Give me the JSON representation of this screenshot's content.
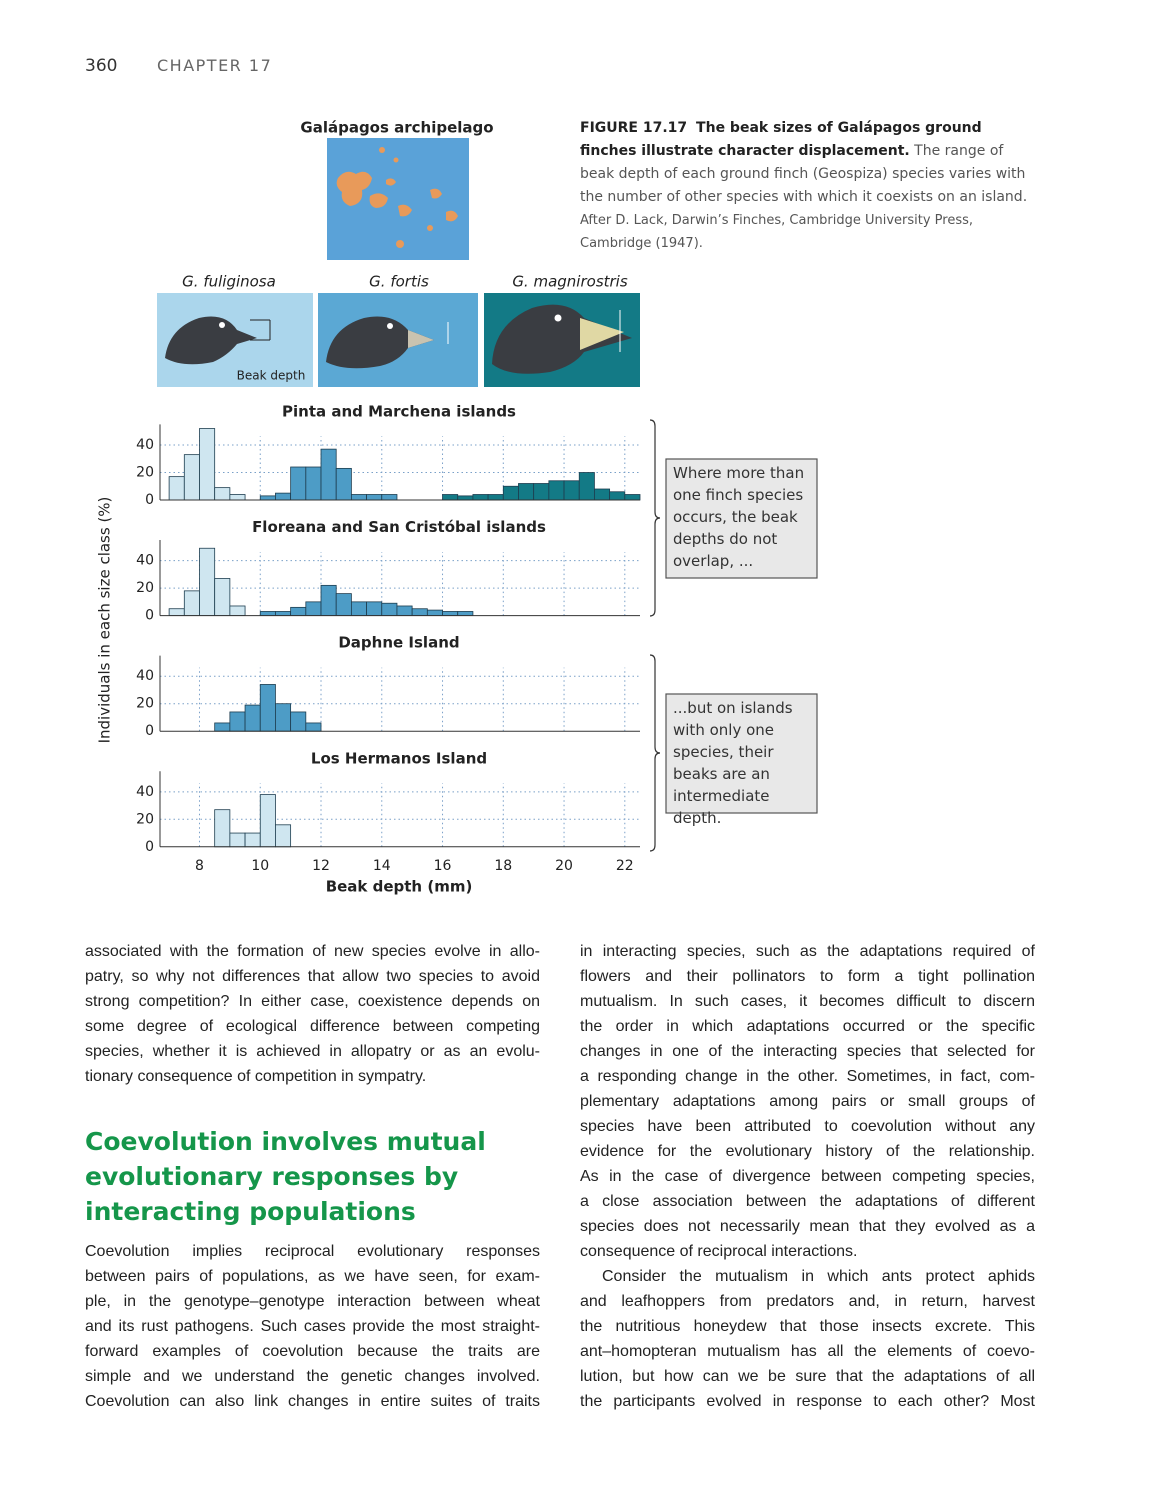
{
  "header": {
    "page_number": "360",
    "chapter": "CHAPTER 17"
  },
  "figure": {
    "caption_label": "FIGURE 17.17",
    "caption_title": "The beak sizes of Galápagos ground finches illustrate character displacement.",
    "caption_body": "The range of beak depth of each ground finch (Geospiza) species varies with the number of other species with which it coexists on an island.",
    "caption_credit": "After D. Lack, Darwin’s Finches, Cambridge University Press, Cambridge (1947).",
    "map_label": "Galápagos archipelago",
    "beak_depth_label": "Beak depth",
    "callouts": [
      "Where more than one finch species occurs, the beak depths do not overlap, ...",
      "...but on islands with only one species, their beaks are an intermediate depth."
    ]
  },
  "chart_data": {
    "type": "histogram-panels",
    "ylabel": "Individuals in each size class (%)",
    "xlabel": "Beak depth (mm)",
    "xlim": [
      6.7,
      22.5
    ],
    "xticks": [
      8,
      10,
      12,
      14,
      16,
      18,
      20,
      22
    ],
    "ylim": [
      0,
      55
    ],
    "yticks": [
      0,
      20,
      40
    ],
    "grid": true,
    "species": [
      {
        "name": "G. fuliginosa",
        "color": "#cfe6f0"
      },
      {
        "name": "G. fortis",
        "color": "#4d9cc6"
      },
      {
        "name": "G. magnirostris",
        "color": "#137a86"
      }
    ],
    "panels": [
      {
        "title": "Pinta and Marchena islands",
        "series": [
          {
            "color": "#cfe6f0",
            "bins": [
              7.0,
              7.5,
              8.0,
              8.5,
              9.0,
              9.5
            ],
            "counts": [
              17,
              33,
              52,
              9,
              4
            ]
          },
          {
            "color": "#4d9cc6",
            "bins": [
              10.0,
              10.5,
              11.0,
              11.5,
              12.0,
              12.5,
              13.0,
              13.5,
              14.0,
              14.5
            ],
            "counts": [
              3,
              5,
              24,
              24,
              37,
              23,
              4,
              4,
              4
            ]
          },
          {
            "color": "#137a86",
            "bins": [
              16.0,
              16.5,
              17.0,
              17.5,
              18.0,
              18.5,
              19.0,
              19.5,
              20.0,
              20.5,
              21.0,
              21.5,
              22.0,
              22.5
            ],
            "counts": [
              4,
              3,
              4,
              4,
              10,
              12,
              12,
              14,
              14,
              20,
              8,
              6,
              4
            ]
          }
        ]
      },
      {
        "title": "Floreana and San Cristóbal islands",
        "series": [
          {
            "color": "#cfe6f0",
            "bins": [
              7.0,
              7.5,
              8.0,
              8.5,
              9.0,
              9.5
            ],
            "counts": [
              5,
              18,
              49,
              27,
              7
            ]
          },
          {
            "color": "#4d9cc6",
            "bins": [
              10.0,
              10.5,
              11.0,
              11.5,
              12.0,
              12.5,
              13.0,
              13.5,
              14.0,
              14.5,
              15.0,
              15.5,
              16.0,
              16.5,
              17.0
            ],
            "counts": [
              3,
              3,
              6,
              10,
              22,
              16,
              10,
              10,
              9,
              7,
              5,
              4,
              3,
              3
            ]
          }
        ]
      },
      {
        "title": "Daphne Island",
        "series": [
          {
            "color": "#4d9cc6",
            "bins": [
              8.5,
              9.0,
              9.5,
              10.0,
              10.5,
              11.0,
              11.5,
              12.0
            ],
            "counts": [
              6,
              14,
              19,
              34,
              20,
              14,
              6
            ]
          }
        ]
      },
      {
        "title": "Los Hermanos Island",
        "series": [
          {
            "color": "#cfe6f0",
            "bins": [
              8.5,
              9.0,
              9.5,
              10.0,
              10.5,
              11.0
            ],
            "counts": [
              27,
              10,
              10,
              38,
              16
            ]
          }
        ]
      }
    ]
  },
  "text": {
    "col1_para1": [
      "associated with the formation of new species evolve in allo-",
      "patry, so why not differences that allow two species to avoid",
      "strong competition? In either case, coexistence depends on",
      "some degree of ecological difference between competing",
      "species, whether it is achieved in allopatry or as an evolu-",
      "tionary consequence of competition in sympatry."
    ],
    "heading": [
      "Coevolution involves mutual",
      "evolutionary responses by",
      "interacting populations"
    ],
    "col1_para2": [
      "Coevolution implies reciprocal evolutionary responses",
      "between pairs of populations, as we have seen, for exam-",
      "ple, in the genotype–genotype interaction between wheat",
      "and its rust pathogens. Such cases provide the most straight-",
      "forward examples of coevolution because the traits are",
      "simple and we understand the genetic changes involved.",
      "Coevolution can also link changes in entire suites of traits"
    ],
    "col2_para1": [
      "in interacting species, such as the adaptations required of",
      "flowers and their pollinators to form a tight pollination",
      "mutualism. In such cases, it becomes difficult to discern",
      "the order in which adaptations occurred or the specific",
      "changes in one of the interacting species that selected for",
      "a responding change in the other. Sometimes, in fact, com-",
      "plementary adaptations among pairs or small groups of",
      "species have been attributed to coevolution without any",
      "evidence for the evolutionary history of the relationship.",
      "As in the case of divergence between competing species,",
      "a close association between the adaptations of different",
      "species does not necessarily mean that they evolved as a",
      "consequence of reciprocal interactions."
    ],
    "col2_para2": [
      "Consider the mutualism in which ants protect aphids",
      "and leafhoppers from predators and, in return, harvest",
      "the nutritious honeydew that those insects excrete. This",
      "ant–homopteran mutualism has all the elements of coevo-",
      "lution, but how can we be sure that the adaptations of all",
      "the participants evolved in response to each other? Most"
    ]
  }
}
